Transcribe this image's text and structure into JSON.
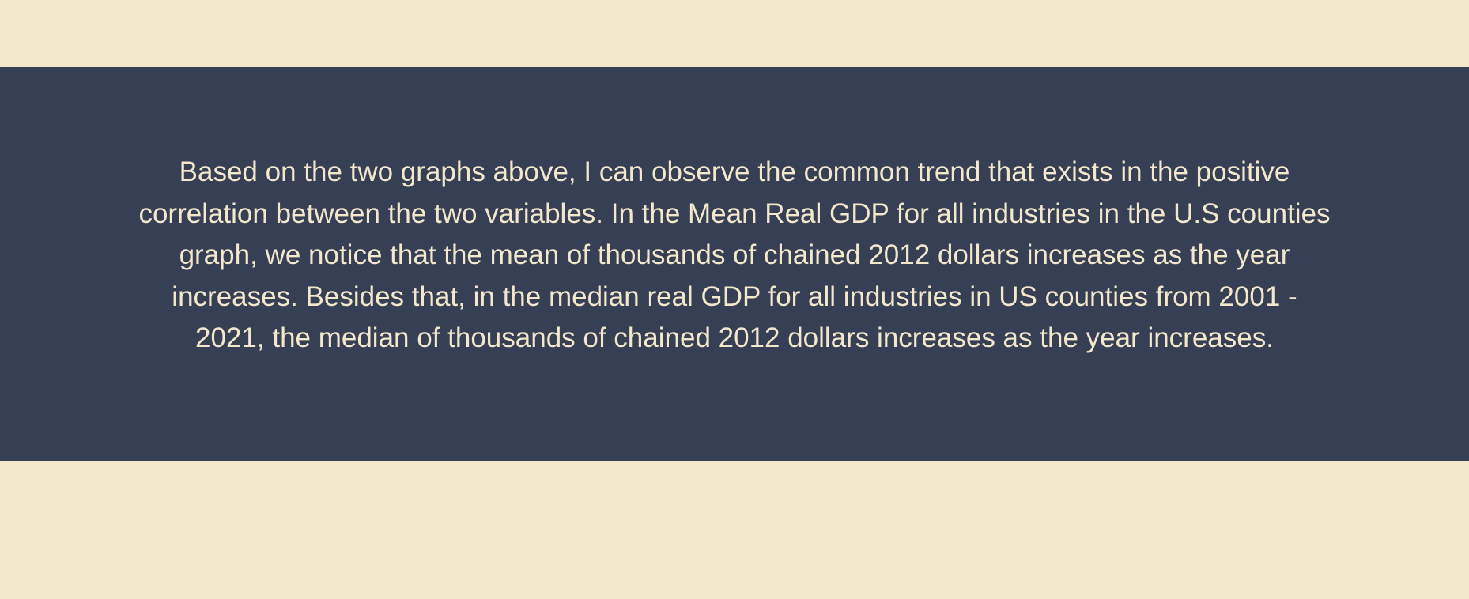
{
  "content": {
    "background_color": "#f3e7cc",
    "band_color": "#373f55",
    "text_color": "#f3e7cc",
    "paragraph_lines": [
      "Based on the two graphs above, I can observe the common trend that exists in the positive",
      "correlation between the two variables. In the Mean Real GDP for all industries in the U.S counties",
      "graph, we notice that the mean of thousands of chained 2012 dollars increases as the year",
      "increases. Besides that, in the median real GDP for all industries in US counties from 2001 -",
      "2021, the median of thousands of chained 2012 dollars increases as the year increases."
    ]
  }
}
